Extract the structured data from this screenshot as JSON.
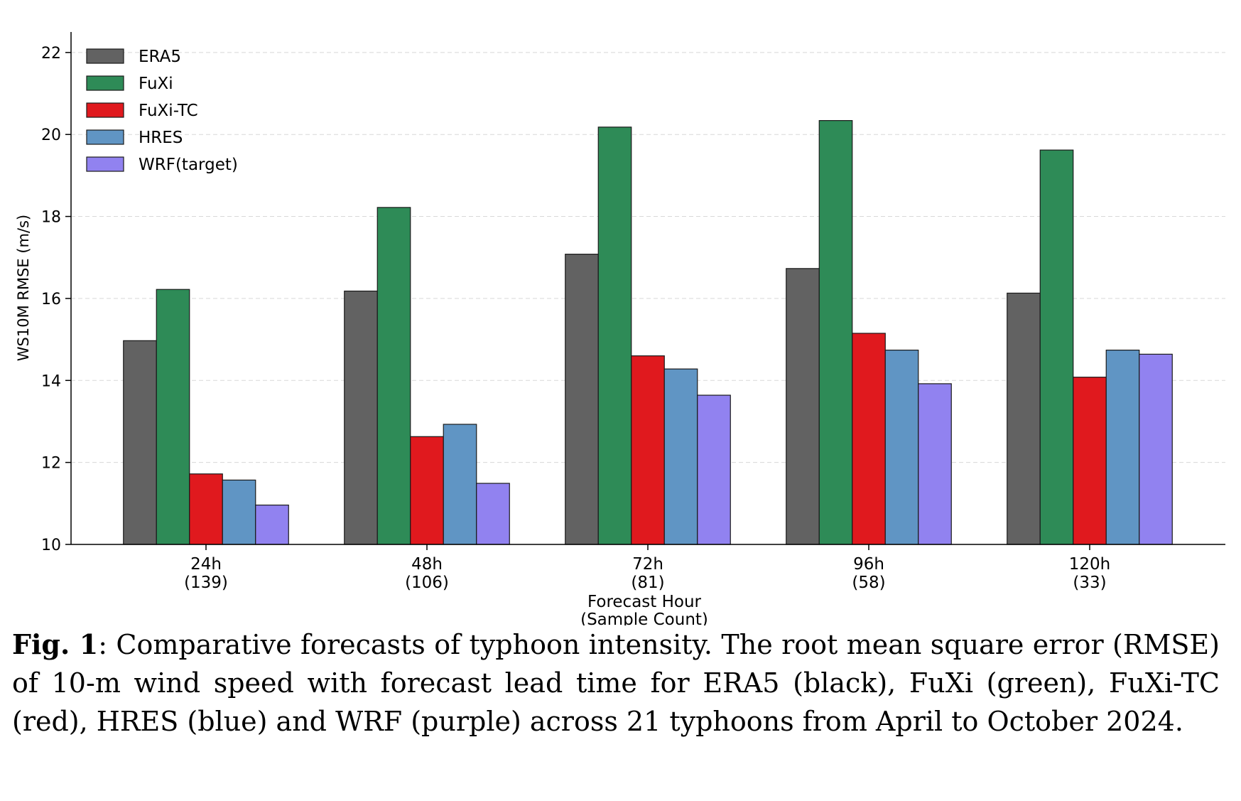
{
  "chart_data": {
    "type": "bar",
    "categories": [
      "24h",
      "48h",
      "72h",
      "96h",
      "120h"
    ],
    "sample_counts": [
      "(139)",
      "(106)",
      "(81)",
      "(58)",
      "(33)"
    ],
    "series": [
      {
        "name": "ERA5",
        "color": "#626262",
        "values": [
          14.97,
          16.18,
          17.08,
          16.73,
          16.13
        ]
      },
      {
        "name": "FuXi",
        "color": "#2e8b57",
        "values": [
          16.22,
          18.22,
          20.18,
          20.34,
          19.62
        ]
      },
      {
        "name": "FuXi-TC",
        "color": "#e0191e",
        "values": [
          11.72,
          12.63,
          14.6,
          15.15,
          14.08
        ]
      },
      {
        "name": "HRES",
        "color": "#6095c4",
        "values": [
          11.57,
          12.93,
          14.28,
          14.74,
          14.74
        ]
      },
      {
        "name": "WRF(target)",
        "color": "#9182f0",
        "values": [
          10.96,
          11.49,
          13.64,
          13.92,
          14.64
        ]
      }
    ],
    "ylabel": "WS10M RMSE (m/s)",
    "xlabel_line1": "Forecast Hour",
    "xlabel_line2": "(Sample Count)",
    "ylim": [
      10,
      22.5
    ],
    "yticks": [
      10,
      12,
      14,
      16,
      18,
      20,
      22
    ],
    "grid": "horizontal-dashed",
    "legend_position": "top-left"
  },
  "caption": {
    "label": "Fig. 1",
    "text": ": Comparative forecasts of typhoon intensity. The root mean square error (RMSE) of 10-m wind speed with forecast lead time for ERA5 (black), FuXi (green), FuXi-TC (red), HRES (blue) and WRF (purple) across 21 typhoons from April to October 2024."
  }
}
